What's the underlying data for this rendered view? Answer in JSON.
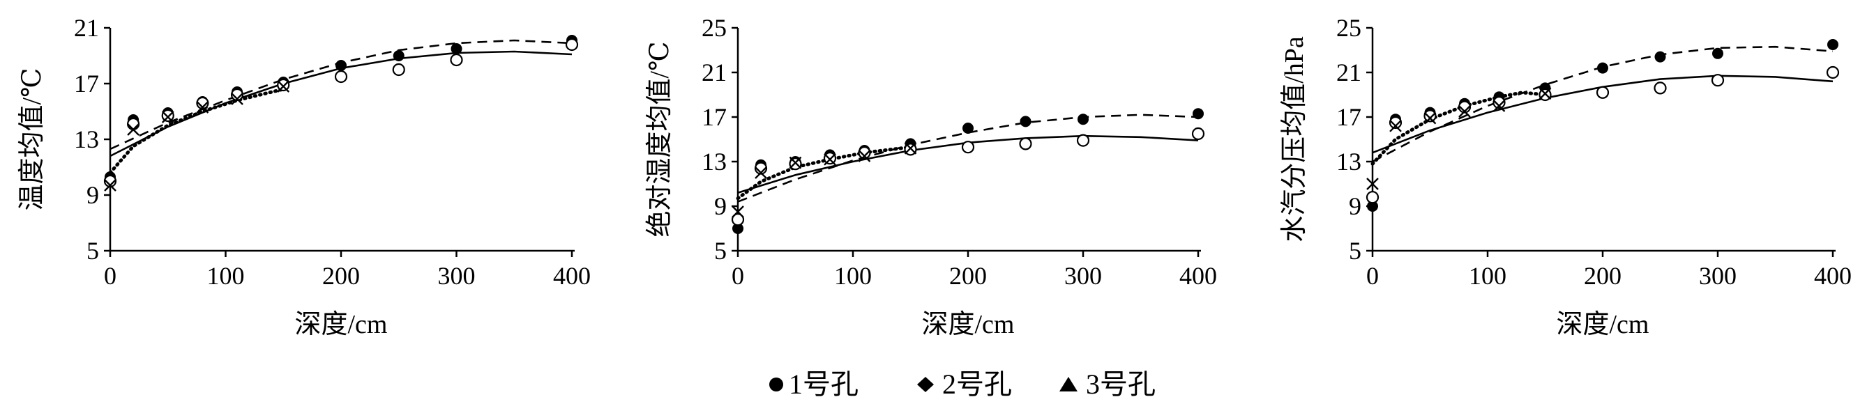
{
  "legend": {
    "items": [
      {
        "symbol": "circle-filled",
        "label": "1号孔"
      },
      {
        "symbol": "diamond-filled",
        "label": "2号孔"
      },
      {
        "symbol": "triangle-filled",
        "label": "3号孔"
      }
    ]
  },
  "chart_data": [
    {
      "type": "scatter",
      "xlabel": "深度/cm",
      "ylabel": "温度均值/℃",
      "xlim": [
        0,
        400
      ],
      "ylim": [
        5,
        21
      ],
      "xticks": [
        "0",
        "100",
        "200",
        "300",
        "400"
      ],
      "yticks": [
        "5",
        "9",
        "13",
        "17",
        "21"
      ],
      "x": [
        0,
        20,
        50,
        80,
        110,
        150,
        200,
        250,
        300,
        400
      ],
      "series": [
        {
          "marker": "circle-filled",
          "values": [
            10.3,
            14.4,
            14.9,
            15.7,
            16.4,
            17.1,
            18.3,
            19.0,
            19.5,
            20.1
          ]
        },
        {
          "marker": "circle-open",
          "values": [
            10.0,
            14.1,
            14.7,
            15.6,
            16.2,
            16.9,
            17.5,
            18.0,
            18.7,
            19.8
          ]
        },
        {
          "marker": "x-cross",
          "values": [
            9.7,
            13.7,
            14.6,
            15.3,
            15.9,
            16.8,
            null,
            null,
            null,
            null
          ]
        }
      ],
      "fits": [
        {
          "style": "solid",
          "points": [
            [
              0,
              11.8
            ],
            [
              50,
              13.9
            ],
            [
              100,
              15.6
            ],
            [
              150,
              17.0
            ],
            [
              200,
              18.1
            ],
            [
              250,
              18.8
            ],
            [
              300,
              19.2
            ],
            [
              350,
              19.3
            ],
            [
              400,
              19.1
            ]
          ]
        },
        {
          "style": "dashed",
          "points": [
            [
              0,
              12.3
            ],
            [
              50,
              14.2
            ],
            [
              100,
              15.8
            ],
            [
              150,
              17.3
            ],
            [
              200,
              18.5
            ],
            [
              250,
              19.4
            ],
            [
              300,
              19.9
            ],
            [
              350,
              20.1
            ],
            [
              400,
              19.9
            ]
          ]
        },
        {
          "style": "dotted",
          "points": [
            [
              0,
              10.6
            ],
            [
              20,
              12.5
            ],
            [
              50,
              14.0
            ],
            [
              80,
              15.0
            ],
            [
              110,
              15.8
            ],
            [
              150,
              16.6
            ]
          ]
        }
      ]
    },
    {
      "type": "scatter",
      "xlabel": "深度/cm",
      "ylabel": "绝对湿度均值/℃",
      "xlim": [
        0,
        400
      ],
      "ylim": [
        5,
        25
      ],
      "xticks": [
        "0",
        "100",
        "200",
        "300",
        "400"
      ],
      "yticks": [
        "5",
        "9",
        "13",
        "17",
        "21",
        "25"
      ],
      "x": [
        0,
        20,
        50,
        80,
        110,
        150,
        200,
        250,
        300,
        400
      ],
      "series": [
        {
          "marker": "circle-filled",
          "values": [
            7.0,
            12.7,
            13.0,
            13.6,
            14.0,
            14.6,
            16.0,
            16.6,
            16.8,
            17.3
          ]
        },
        {
          "marker": "circle-open",
          "values": [
            7.8,
            12.4,
            12.8,
            13.3,
            13.8,
            14.1,
            14.3,
            14.6,
            14.9,
            15.5
          ]
        },
        {
          "marker": "x-cross",
          "values": [
            8.5,
            12.0,
            12.9,
            13.2,
            13.5,
            14.2,
            null,
            null,
            null,
            null
          ]
        }
      ],
      "fits": [
        {
          "style": "solid",
          "points": [
            [
              0,
              10.2
            ],
            [
              50,
              11.8
            ],
            [
              100,
              13.0
            ],
            [
              150,
              14.0
            ],
            [
              200,
              14.7
            ],
            [
              250,
              15.1
            ],
            [
              300,
              15.3
            ],
            [
              350,
              15.2
            ],
            [
              400,
              14.9
            ]
          ]
        },
        {
          "style": "dashed",
          "points": [
            [
              0,
              9.4
            ],
            [
              50,
              11.4
            ],
            [
              100,
              13.1
            ],
            [
              150,
              14.5
            ],
            [
              200,
              15.6
            ],
            [
              250,
              16.5
            ],
            [
              300,
              17.0
            ],
            [
              350,
              17.2
            ],
            [
              400,
              17.0
            ]
          ]
        },
        {
          "style": "dotted",
          "points": [
            [
              0,
              9.7
            ],
            [
              20,
              11.2
            ],
            [
              50,
              12.5
            ],
            [
              80,
              13.2
            ],
            [
              110,
              13.8
            ],
            [
              150,
              14.3
            ]
          ]
        }
      ]
    },
    {
      "type": "scatter",
      "xlabel": "深度/cm",
      "ylabel": "水汽分压均值/hPa",
      "xlim": [
        0,
        400
      ],
      "ylim": [
        5,
        25
      ],
      "xticks": [
        "0",
        "100",
        "200",
        "300",
        "400"
      ],
      "yticks": [
        "5",
        "9",
        "13",
        "17",
        "21",
        "25"
      ],
      "x": [
        0,
        20,
        50,
        80,
        110,
        150,
        200,
        250,
        300,
        400
      ],
      "series": [
        {
          "marker": "circle-filled",
          "values": [
            9.0,
            16.8,
            17.4,
            18.2,
            18.8,
            19.6,
            21.4,
            22.4,
            22.7,
            23.5
          ]
        },
        {
          "marker": "circle-open",
          "values": [
            9.8,
            16.5,
            17.1,
            17.9,
            18.3,
            19.0,
            19.2,
            19.6,
            20.3,
            21.0
          ]
        },
        {
          "marker": "x-cross",
          "values": [
            11.0,
            16.2,
            16.9,
            17.5,
            18.0,
            19.1,
            null,
            null,
            null,
            null
          ]
        }
      ],
      "fits": [
        {
          "style": "solid",
          "points": [
            [
              0,
              13.8
            ],
            [
              50,
              15.8
            ],
            [
              100,
              17.4
            ],
            [
              150,
              18.7
            ],
            [
              200,
              19.7
            ],
            [
              250,
              20.4
            ],
            [
              300,
              20.7
            ],
            [
              350,
              20.6
            ],
            [
              400,
              20.2
            ]
          ]
        },
        {
          "style": "dashed",
          "points": [
            [
              0,
              13.0
            ],
            [
              50,
              15.7
            ],
            [
              100,
              18.0
            ],
            [
              150,
              19.9
            ],
            [
              200,
              21.5
            ],
            [
              250,
              22.6
            ],
            [
              300,
              23.2
            ],
            [
              350,
              23.3
            ],
            [
              400,
              22.9
            ]
          ]
        },
        {
          "style": "dotted",
          "points": [
            [
              0,
              12.8
            ],
            [
              20,
              15.0
            ],
            [
              50,
              16.8
            ],
            [
              80,
              18.0
            ],
            [
              110,
              18.8
            ],
            [
              130,
              19.2
            ],
            [
              150,
              19.0
            ]
          ]
        }
      ]
    }
  ]
}
